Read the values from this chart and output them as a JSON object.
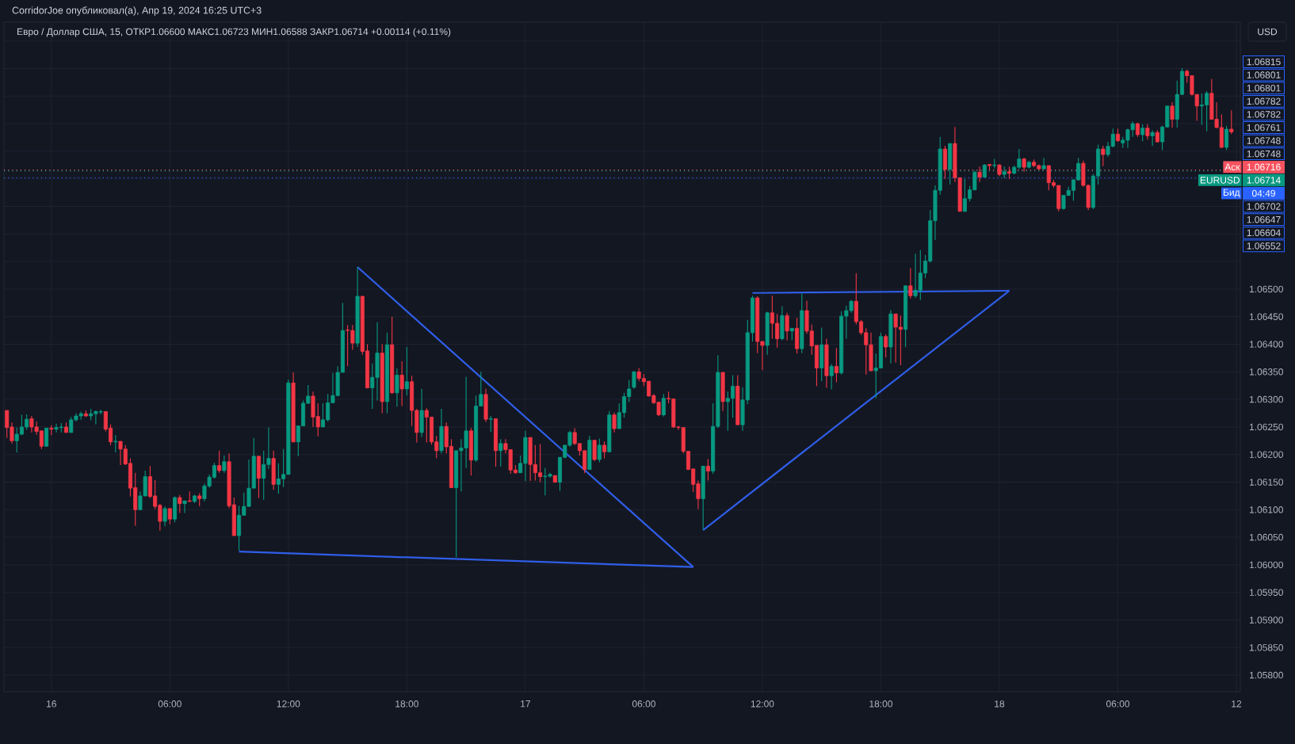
{
  "chart_data": {
    "type": "candlestick",
    "title": "CorridorJoe опубликовал(а), Апр 19, 2024 16:25 UTC+3",
    "subtitle": "Евро / Доллар США, 15, ОТКР1.06600 МАКС1.06723 МИН1.06588 ЗАКР1.06714 +0.00114 (+0.11%)",
    "ylabel": "USD",
    "x": [
      "2024-04-15T21:45",
      "2024-04-15T22:00",
      "2024-04-15T22:15",
      "2024-04-15T22:30",
      "2024-04-15T22:45",
      "2024-04-15T23:00",
      "2024-04-15T23:15",
      "2024-04-15T23:30",
      "2024-04-15T23:45",
      "2024-04-16T00:00",
      "2024-04-16T00:15",
      "2024-04-16T00:30",
      "2024-04-16T00:45",
      "2024-04-16T01:00",
      "2024-04-16T01:15",
      "2024-04-16T01:30",
      "2024-04-16T01:45",
      "2024-04-16T02:00",
      "2024-04-16T02:15",
      "2024-04-16T02:30",
      "2024-04-16T02:45",
      "2024-04-16T03:00",
      "2024-04-16T03:15",
      "2024-04-16T03:30",
      "2024-04-16T03:45",
      "2024-04-16T04:00",
      "2024-04-16T04:15",
      "2024-04-16T04:30",
      "2024-04-16T04:45",
      "2024-04-16T05:00",
      "2024-04-16T05:15",
      "2024-04-16T05:30",
      "2024-04-16T05:45",
      "2024-04-16T06:00",
      "2024-04-16T06:15",
      "2024-04-16T06:30",
      "2024-04-16T06:45",
      "2024-04-16T07:00",
      "2024-04-16T07:15",
      "2024-04-16T07:30",
      "2024-04-16T07:45",
      "2024-04-16T08:00",
      "2024-04-16T08:15",
      "2024-04-16T08:30",
      "2024-04-16T08:45",
      "2024-04-16T09:00",
      "2024-04-16T09:15",
      "2024-04-16T09:30",
      "2024-04-16T09:45",
      "2024-04-16T10:00",
      "2024-04-16T10:15",
      "2024-04-16T10:30",
      "2024-04-16T10:45",
      "2024-04-16T11:00",
      "2024-04-16T11:15",
      "2024-04-16T11:30",
      "2024-04-16T11:45",
      "2024-04-16T12:00",
      "2024-04-16T12:15",
      "2024-04-16T12:30",
      "2024-04-16T12:45",
      "2024-04-16T13:00",
      "2024-04-16T13:15",
      "2024-04-16T13:30",
      "2024-04-16T13:45",
      "2024-04-16T14:00",
      "2024-04-16T14:15",
      "2024-04-16T14:30",
      "2024-04-16T14:45",
      "2024-04-16T15:00",
      "2024-04-16T15:15",
      "2024-04-16T15:30",
      "2024-04-16T15:45",
      "2024-04-16T16:00",
      "2024-04-16T16:15",
      "2024-04-16T16:30",
      "2024-04-16T16:45",
      "2024-04-16T17:00",
      "2024-04-16T17:15",
      "2024-04-16T17:30",
      "2024-04-16T17:45",
      "2024-04-16T18:00",
      "2024-04-16T18:15",
      "2024-04-16T18:30",
      "2024-04-16T18:45",
      "2024-04-16T19:00",
      "2024-04-16T19:15",
      "2024-04-16T19:30",
      "2024-04-16T19:45",
      "2024-04-16T20:00",
      "2024-04-16T20:15",
      "2024-04-16T20:30",
      "2024-04-16T20:45",
      "2024-04-16T21:00",
      "2024-04-16T21:15",
      "2024-04-16T21:30",
      "2024-04-16T21:45",
      "2024-04-16T22:00",
      "2024-04-16T22:15",
      "2024-04-16T22:30",
      "2024-04-16T22:45",
      "2024-04-16T23:00",
      "2024-04-16T23:15",
      "2024-04-16T23:30",
      "2024-04-16T23:45",
      "2024-04-17T00:00",
      "2024-04-17T00:15",
      "2024-04-17T00:30",
      "2024-04-17T00:45",
      "2024-04-17T01:00",
      "2024-04-17T01:15",
      "2024-04-17T01:30",
      "2024-04-17T01:45",
      "2024-04-17T02:00",
      "2024-04-17T02:15",
      "2024-04-17T02:30",
      "2024-04-17T02:45",
      "2024-04-17T03:00",
      "2024-04-17T03:15",
      "2024-04-17T03:30",
      "2024-04-17T03:45",
      "2024-04-17T04:00",
      "2024-04-17T04:15",
      "2024-04-17T04:30",
      "2024-04-17T04:45",
      "2024-04-17T05:00",
      "2024-04-17T05:15",
      "2024-04-17T05:30",
      "2024-04-17T05:45",
      "2024-04-17T06:00",
      "2024-04-17T06:15",
      "2024-04-17T06:30",
      "2024-04-17T06:45",
      "2024-04-17T07:00",
      "2024-04-17T07:15",
      "2024-04-17T07:30",
      "2024-04-17T07:45",
      "2024-04-17T08:00",
      "2024-04-17T08:15",
      "2024-04-17T08:30",
      "2024-04-17T08:45",
      "2024-04-17T09:00",
      "2024-04-17T09:15",
      "2024-04-17T09:30",
      "2024-04-17T09:45",
      "2024-04-17T10:00",
      "2024-04-17T10:15",
      "2024-04-17T10:30",
      "2024-04-17T10:45",
      "2024-04-17T11:00",
      "2024-04-17T11:15",
      "2024-04-17T11:30",
      "2024-04-17T11:45",
      "2024-04-17T12:00",
      "2024-04-17T12:15",
      "2024-04-17T12:30",
      "2024-04-17T12:45",
      "2024-04-17T13:00",
      "2024-04-17T13:15",
      "2024-04-17T13:30",
      "2024-04-17T13:45",
      "2024-04-17T14:00",
      "2024-04-17T14:15",
      "2024-04-17T14:30",
      "2024-04-17T14:45",
      "2024-04-17T15:00",
      "2024-04-17T15:15",
      "2024-04-17T15:30",
      "2024-04-17T15:45",
      "2024-04-17T16:00",
      "2024-04-17T16:15",
      "2024-04-17T16:30",
      "2024-04-17T16:45",
      "2024-04-17T17:00",
      "2024-04-17T17:15",
      "2024-04-17T17:30",
      "2024-04-17T17:45",
      "2024-04-17T18:00",
      "2024-04-17T18:15",
      "2024-04-17T18:30",
      "2024-04-17T18:45",
      "2024-04-17T19:00",
      "2024-04-17T19:15",
      "2024-04-17T19:30",
      "2024-04-17T19:45",
      "2024-04-17T20:00",
      "2024-04-17T20:15",
      "2024-04-17T20:30",
      "2024-04-17T20:45",
      "2024-04-17T21:00",
      "2024-04-17T21:15",
      "2024-04-17T21:30",
      "2024-04-17T21:45",
      "2024-04-17T22:00",
      "2024-04-17T22:15",
      "2024-04-17T22:30",
      "2024-04-17T22:45",
      "2024-04-17T23:00",
      "2024-04-17T23:15",
      "2024-04-17T23:30",
      "2024-04-17T23:45",
      "2024-04-18T00:00",
      "2024-04-18T00:15",
      "2024-04-18T00:30",
      "2024-04-18T00:45",
      "2024-04-18T01:00",
      "2024-04-18T01:15",
      "2024-04-18T01:30",
      "2024-04-18T01:45",
      "2024-04-18T02:00",
      "2024-04-18T02:15",
      "2024-04-18T02:30",
      "2024-04-18T02:45",
      "2024-04-18T03:00",
      "2024-04-18T03:15",
      "2024-04-18T03:30",
      "2024-04-18T03:45",
      "2024-04-18T04:00",
      "2024-04-18T04:15",
      "2024-04-18T04:30",
      "2024-04-18T04:45",
      "2024-04-18T05:00",
      "2024-04-18T05:15",
      "2024-04-18T05:30",
      "2024-04-18T05:45",
      "2024-04-18T06:00",
      "2024-04-18T06:15",
      "2024-04-18T06:30",
      "2024-04-18T06:45",
      "2024-04-18T07:00",
      "2024-04-18T07:15",
      "2024-04-18T07:30",
      "2024-04-18T07:45",
      "2024-04-18T08:00",
      "2024-04-18T08:15",
      "2024-04-18T08:30",
      "2024-04-18T08:45",
      "2024-04-18T09:00",
      "2024-04-18T09:15",
      "2024-04-18T09:30",
      "2024-04-18T09:45",
      "2024-04-18T10:00",
      "2024-04-18T10:15",
      "2024-04-18T10:30",
      "2024-04-18T10:45",
      "2024-04-18T11:00",
      "2024-04-18T11:15",
      "2024-04-18T11:30",
      "2024-04-18T11:45"
    ],
    "ohlc": [
      [
        1.0628,
        1.0628,
        1.0623,
        1.06249
      ],
      [
        1.0625,
        1.06258,
        1.0622,
        1.06225
      ],
      [
        1.06225,
        1.06249,
        1.06204,
        1.06237
      ],
      [
        1.06237,
        1.06272,
        1.06235,
        1.0625
      ],
      [
        1.0625,
        1.06273,
        1.06245,
        1.06264
      ],
      [
        1.06265,
        1.0627,
        1.0624,
        1.0625
      ],
      [
        1.0625,
        1.0626,
        1.06236,
        1.06242
      ],
      [
        1.06243,
        1.06243,
        1.0621,
        1.06215
      ],
      [
        1.06215,
        1.06248,
        1.06215,
        1.06248
      ],
      [
        1.06248,
        1.06253,
        1.06235,
        1.06246
      ],
      [
        1.06246,
        1.06256,
        1.0624,
        1.06249
      ],
      [
        1.06249,
        1.06257,
        1.0624,
        1.0625
      ],
      [
        1.0625,
        1.06258,
        1.0624,
        1.0624
      ],
      [
        1.0624,
        1.06268,
        1.0624,
        1.06263
      ],
      [
        1.06263,
        1.06275,
        1.0626,
        1.0627
      ],
      [
        1.0627,
        1.06278,
        1.06263,
        1.06274
      ],
      [
        1.06274,
        1.0628,
        1.06268,
        1.0627
      ],
      [
        1.0627,
        1.06283,
        1.06262,
        1.06274
      ],
      [
        1.06274,
        1.0628,
        1.06255,
        1.06278
      ],
      [
        1.06277,
        1.06281,
        1.06273,
        1.06278
      ],
      [
        1.06278,
        1.06278,
        1.06242,
        1.06246
      ],
      [
        1.06248,
        1.06255,
        1.06217,
        1.06223
      ],
      [
        1.06223,
        1.06235,
        1.06204,
        1.06224
      ],
      [
        1.06224,
        1.06224,
        1.06181,
        1.0621
      ],
      [
        1.0621,
        1.06217,
        1.06181,
        1.06183
      ],
      [
        1.06184,
        1.06193,
        1.06124,
        1.06139
      ],
      [
        1.0614,
        1.06167,
        1.06071,
        1.061
      ],
      [
        1.061,
        1.06133,
        1.061,
        1.06125
      ],
      [
        1.06125,
        1.06171,
        1.06124,
        1.0616
      ],
      [
        1.0616,
        1.06179,
        1.06121,
        1.06124
      ],
      [
        1.06125,
        1.06154,
        1.06101,
        1.06106
      ],
      [
        1.06108,
        1.06111,
        1.06062,
        1.06079
      ],
      [
        1.06079,
        1.06106,
        1.0607,
        1.06102
      ],
      [
        1.06102,
        1.06103,
        1.06074,
        1.06083
      ],
      [
        1.06083,
        1.06124,
        1.06077,
        1.06122
      ],
      [
        1.06122,
        1.06127,
        1.06094,
        1.06111
      ],
      [
        1.06111,
        1.06116,
        1.06094,
        1.06116
      ],
      [
        1.06116,
        1.06133,
        1.06114,
        1.06115
      ],
      [
        1.06115,
        1.06127,
        1.06112,
        1.06125
      ],
      [
        1.06125,
        1.0613,
        1.06106,
        1.0612
      ],
      [
        1.0612,
        1.06147,
        1.06115,
        1.06143
      ],
      [
        1.06143,
        1.06164,
        1.0614,
        1.06159
      ],
      [
        1.06159,
        1.06185,
        1.06156,
        1.0618
      ],
      [
        1.0618,
        1.06207,
        1.06167,
        1.06171
      ],
      [
        1.06171,
        1.06198,
        1.06167,
        1.06187
      ],
      [
        1.06187,
        1.06202,
        1.06103,
        1.06107
      ],
      [
        1.06109,
        1.06122,
        1.06053,
        1.06053
      ],
      [
        1.06053,
        1.06107,
        1.06026,
        1.0609
      ],
      [
        1.0609,
        1.06131,
        1.0609,
        1.06106
      ],
      [
        1.06106,
        1.06191,
        1.06105,
        1.06139
      ],
      [
        1.06139,
        1.0623,
        1.06139,
        1.06197
      ],
      [
        1.06197,
        1.06197,
        1.06121,
        1.06157
      ],
      [
        1.06157,
        1.06207,
        1.06118,
        1.06182
      ],
      [
        1.06182,
        1.06249,
        1.06174,
        1.06193
      ],
      [
        1.06193,
        1.06207,
        1.06136,
        1.06146
      ],
      [
        1.06146,
        1.06184,
        1.06129,
        1.06156
      ],
      [
        1.06156,
        1.0621,
        1.06141,
        1.06164
      ],
      [
        1.06164,
        1.06336,
        1.06164,
        1.0633
      ],
      [
        1.0633,
        1.06349,
        1.06222,
        1.06223
      ],
      [
        1.06223,
        1.06252,
        1.06197,
        1.06252
      ],
      [
        1.06252,
        1.06298,
        1.06252,
        1.06293
      ],
      [
        1.06293,
        1.06326,
        1.06292,
        1.06306
      ],
      [
        1.06306,
        1.06314,
        1.0625,
        1.06268
      ],
      [
        1.06269,
        1.06293,
        1.06233,
        1.0625
      ],
      [
        1.0625,
        1.06293,
        1.0625,
        1.06263
      ],
      [
        1.06263,
        1.0631,
        1.0626,
        1.06294
      ],
      [
        1.06294,
        1.06348,
        1.06293,
        1.06307
      ],
      [
        1.06307,
        1.0636,
        1.06306,
        1.06349
      ],
      [
        1.06349,
        1.06475,
        1.06349,
        1.06425
      ],
      [
        1.06426,
        1.06435,
        1.0636,
        1.06425
      ],
      [
        1.06425,
        1.06435,
        1.0639,
        1.06402
      ],
      [
        1.06402,
        1.0654,
        1.06395,
        1.06487
      ],
      [
        1.06487,
        1.06487,
        1.06381,
        1.06387
      ],
      [
        1.06388,
        1.064,
        1.0632,
        1.06321
      ],
      [
        1.06321,
        1.06365,
        1.06283,
        1.0634
      ],
      [
        1.0634,
        1.0644,
        1.06298,
        1.06384
      ],
      [
        1.06384,
        1.064,
        1.06275,
        1.06296
      ],
      [
        1.06296,
        1.06421,
        1.06275,
        1.06399
      ],
      [
        1.06399,
        1.0645,
        1.0631,
        1.06312
      ],
      [
        1.06312,
        1.06356,
        1.06287,
        1.06344
      ],
      [
        1.06344,
        1.06369,
        1.06288,
        1.06319
      ],
      [
        1.06319,
        1.06395,
        1.06307,
        1.06332
      ],
      [
        1.06332,
        1.06343,
        1.06252,
        1.0628
      ],
      [
        1.0628,
        1.06283,
        1.06222,
        1.0624
      ],
      [
        1.0624,
        1.06319,
        1.06232,
        1.0628
      ],
      [
        1.0628,
        1.06284,
        1.06222,
        1.06268
      ],
      [
        1.06268,
        1.06268,
        1.06218,
        1.06223
      ],
      [
        1.06223,
        1.06234,
        1.06193,
        1.06207
      ],
      [
        1.06207,
        1.06283,
        1.06202,
        1.06251
      ],
      [
        1.06251,
        1.06258,
        1.06202,
        1.06214
      ],
      [
        1.06215,
        1.06228,
        1.0614,
        1.0614
      ],
      [
        1.0614,
        1.06207,
        1.06014,
        1.06207
      ],
      [
        1.06207,
        1.06228,
        1.06133,
        1.06212
      ],
      [
        1.06212,
        1.06341,
        1.06176,
        1.06243
      ],
      [
        1.06243,
        1.06248,
        1.06162,
        1.0619
      ],
      [
        1.0619,
        1.06307,
        1.06187,
        1.06288
      ],
      [
        1.06288,
        1.0635,
        1.06288,
        1.06309
      ],
      [
        1.06309,
        1.06319,
        1.06259,
        1.06264
      ],
      [
        1.06264,
        1.0627,
        1.06241,
        1.06265
      ],
      [
        1.06265,
        1.06265,
        1.06178,
        1.06207
      ],
      [
        1.06207,
        1.06228,
        1.06178,
        1.0622
      ],
      [
        1.0622,
        1.06228,
        1.06202,
        1.06209
      ],
      [
        1.06209,
        1.06209,
        1.06165,
        1.06172
      ],
      [
        1.06172,
        1.06181,
        1.06165,
        1.06167
      ],
      [
        1.06167,
        1.06198,
        1.06167,
        1.06184
      ],
      [
        1.06184,
        1.06243,
        1.06152,
        1.06231
      ],
      [
        1.06231,
        1.06231,
        1.06152,
        1.06182
      ],
      [
        1.06182,
        1.06217,
        1.06153,
        1.06167
      ],
      [
        1.06167,
        1.06219,
        1.0615,
        1.0616
      ],
      [
        1.0616,
        1.06176,
        1.06126,
        1.06161
      ],
      [
        1.06161,
        1.06167,
        1.06158,
        1.06164
      ],
      [
        1.06162,
        1.06162,
        1.06149,
        1.0615
      ],
      [
        1.0615,
        1.06195,
        1.06134,
        1.06195
      ],
      [
        1.06195,
        1.06217,
        1.06193,
        1.06217
      ],
      [
        1.06217,
        1.06243,
        1.06214,
        1.0624
      ],
      [
        1.0624,
        1.06248,
        1.06217,
        1.0622
      ],
      [
        1.0622,
        1.0622,
        1.06198,
        1.06207
      ],
      [
        1.06207,
        1.06207,
        1.06166,
        1.06173
      ],
      [
        1.06173,
        1.06234,
        1.06173,
        1.06226
      ],
      [
        1.06226,
        1.06226,
        1.06188,
        1.06191
      ],
      [
        1.06191,
        1.06229,
        1.06186,
        1.06217
      ],
      [
        1.06217,
        1.06224,
        1.06193,
        1.06205
      ],
      [
        1.06205,
        1.06279,
        1.06205,
        1.06272
      ],
      [
        1.06272,
        1.06276,
        1.0624,
        1.06247
      ],
      [
        1.06247,
        1.06293,
        1.06247,
        1.06276
      ],
      [
        1.06276,
        1.06312,
        1.06267,
        1.06305
      ],
      [
        1.06305,
        1.06335,
        1.06295,
        1.06319
      ],
      [
        1.06322,
        1.06352,
        1.06319,
        1.0635
      ],
      [
        1.0635,
        1.06357,
        1.06333,
        1.06338
      ],
      [
        1.06338,
        1.06346,
        1.06324,
        1.06332
      ],
      [
        1.06333,
        1.06333,
        1.06305,
        1.06306
      ],
      [
        1.06307,
        1.0631,
        1.06292,
        1.06294
      ],
      [
        1.06295,
        1.06295,
        1.0627,
        1.06272
      ],
      [
        1.06272,
        1.0631,
        1.06269,
        1.06302
      ],
      [
        1.06302,
        1.06314,
        1.06293,
        1.06301
      ],
      [
        1.06301,
        1.06301,
        1.06248,
        1.0625
      ],
      [
        1.0625,
        1.06252,
        1.06245,
        1.06249
      ],
      [
        1.06249,
        1.06249,
        1.06202,
        1.06206
      ],
      [
        1.06206,
        1.06206,
        1.06172,
        1.06173
      ],
      [
        1.06174,
        1.06174,
        1.06132,
        1.06146
      ],
      [
        1.06147,
        1.06153,
        1.06101,
        1.0612
      ],
      [
        1.0612,
        1.06179,
        1.06064,
        1.06179
      ],
      [
        1.06179,
        1.06192,
        1.06153,
        1.0617
      ],
      [
        1.0617,
        1.06293,
        1.06165,
        1.06251
      ],
      [
        1.06251,
        1.0638,
        1.06248,
        1.06349
      ],
      [
        1.06349,
        1.06349,
        1.06279,
        1.06296
      ],
      [
        1.06296,
        1.06314,
        1.06243,
        1.06302
      ],
      [
        1.06302,
        1.06344,
        1.06267,
        1.06324
      ],
      [
        1.06324,
        1.06344,
        1.06254,
        1.06254
      ],
      [
        1.06254,
        1.06322,
        1.06243,
        1.06299
      ],
      [
        1.06299,
        1.06444,
        1.06291,
        1.06421
      ],
      [
        1.06421,
        1.06488,
        1.06405,
        1.06484
      ],
      [
        1.06484,
        1.06487,
        1.06384,
        1.06405
      ],
      [
        1.06405,
        1.06406,
        1.06353,
        1.06398
      ],
      [
        1.06398,
        1.06459,
        1.06381,
        1.06457
      ],
      [
        1.06457,
        1.06488,
        1.0641,
        1.06438
      ],
      [
        1.06438,
        1.06455,
        1.06394,
        1.0641
      ],
      [
        1.0641,
        1.06469,
        1.06407,
        1.06452
      ],
      [
        1.06452,
        1.06457,
        1.06407,
        1.06424
      ],
      [
        1.06424,
        1.06429,
        1.06407,
        1.06429
      ],
      [
        1.06429,
        1.06448,
        1.06383,
        1.06392
      ],
      [
        1.06392,
        1.06492,
        1.06384,
        1.06461
      ],
      [
        1.06461,
        1.06479,
        1.06419,
        1.06424
      ],
      [
        1.06424,
        1.06436,
        1.06381,
        1.06397
      ],
      [
        1.06398,
        1.06398,
        1.06324,
        1.06357
      ],
      [
        1.06357,
        1.0643,
        1.06333,
        1.06399
      ],
      [
        1.06399,
        1.0641,
        1.06321,
        1.06343
      ],
      [
        1.06343,
        1.06364,
        1.06318,
        1.0636
      ],
      [
        1.0636,
        1.06393,
        1.06331,
        1.06348
      ],
      [
        1.06348,
        1.0646,
        1.06345,
        1.06451
      ],
      [
        1.06451,
        1.0647,
        1.0641,
        1.06461
      ],
      [
        1.06461,
        1.0648,
        1.06457,
        1.06478
      ],
      [
        1.06478,
        1.06529,
        1.06436,
        1.06441
      ],
      [
        1.06441,
        1.06444,
        1.06417,
        1.06421
      ],
      [
        1.06421,
        1.06429,
        1.06345,
        1.06399
      ],
      [
        1.06399,
        1.06421,
        1.06351,
        1.06352
      ],
      [
        1.06352,
        1.06383,
        1.06302,
        1.06357
      ],
      [
        1.06357,
        1.06421,
        1.06357,
        1.06414
      ],
      [
        1.06414,
        1.06418,
        1.06376,
        1.06395
      ],
      [
        1.06395,
        1.06462,
        1.06365,
        1.06455
      ],
      [
        1.06455,
        1.06455,
        1.06367,
        1.06431
      ],
      [
        1.06431,
        1.06452,
        1.06362,
        1.06427
      ],
      [
        1.06427,
        1.06506,
        1.06395,
        1.06506
      ],
      [
        1.06506,
        1.06538,
        1.06483,
        1.06488
      ],
      [
        1.06488,
        1.06564,
        1.06484,
        1.06498
      ],
      [
        1.06498,
        1.06571,
        1.0648,
        1.06529
      ],
      [
        1.06529,
        1.06562,
        1.0652,
        1.06551
      ],
      [
        1.06551,
        1.06643,
        1.06548,
        1.06624
      ],
      [
        1.06624,
        1.06688,
        1.06589,
        1.06679
      ],
      [
        1.06679,
        1.06776,
        1.06671,
        1.06754
      ],
      [
        1.06754,
        1.0676,
        1.067,
        1.06717
      ],
      [
        1.06717,
        1.06764,
        1.0669,
        1.06764
      ],
      [
        1.06764,
        1.06794,
        1.06694,
        1.06702
      ],
      [
        1.06702,
        1.06702,
        1.06641,
        1.06641
      ],
      [
        1.06641,
        1.067,
        1.0664,
        1.06664
      ],
      [
        1.06664,
        1.06687,
        1.06659,
        1.0668
      ],
      [
        1.0668,
        1.06715,
        1.06679,
        1.06712
      ],
      [
        1.06712,
        1.06722,
        1.06694,
        1.06703
      ],
      [
        1.06703,
        1.06727,
        1.06702,
        1.06725
      ],
      [
        1.06726,
        1.06727,
        1.06717,
        1.06724
      ],
      [
        1.06724,
        1.06736,
        1.06719,
        1.06725
      ],
      [
        1.06725,
        1.06727,
        1.06705,
        1.06708
      ],
      [
        1.06708,
        1.06722,
        1.06701,
        1.06713
      ],
      [
        1.06713,
        1.06722,
        1.067,
        1.0671
      ],
      [
        1.0671,
        1.06724,
        1.06708,
        1.06721
      ],
      [
        1.06721,
        1.06754,
        1.06718,
        1.06736
      ],
      [
        1.06736,
        1.06738,
        1.06713,
        1.06721
      ],
      [
        1.06721,
        1.06733,
        1.06719,
        1.0673
      ],
      [
        1.0673,
        1.06735,
        1.06721,
        1.06724
      ],
      [
        1.06724,
        1.06726,
        1.06717,
        1.06718
      ],
      [
        1.06718,
        1.06738,
        1.06717,
        1.06724
      ],
      [
        1.06724,
        1.06724,
        1.06679,
        1.06693
      ],
      [
        1.06693,
        1.06698,
        1.06684,
        1.06688
      ],
      [
        1.06688,
        1.06688,
        1.06641,
        1.06646
      ],
      [
        1.06646,
        1.0667,
        1.06644,
        1.0667
      ],
      [
        1.0667,
        1.06686,
        1.06669,
        1.06679
      ],
      [
        1.06679,
        1.067,
        1.0666,
        1.06698
      ],
      [
        1.06698,
        1.06738,
        1.06697,
        1.06728
      ],
      [
        1.06728,
        1.06733,
        1.06686,
        1.06688
      ],
      [
        1.06688,
        1.0669,
        1.06643,
        1.06648
      ],
      [
        1.06648,
        1.06709,
        1.06645,
        1.06705
      ],
      [
        1.06705,
        1.06762,
        1.0669,
        1.06754
      ],
      [
        1.06754,
        1.0676,
        1.06723,
        1.06744
      ],
      [
        1.06744,
        1.06767,
        1.0674,
        1.06759
      ],
      [
        1.06759,
        1.06791,
        1.06757,
        1.06781
      ],
      [
        1.06781,
        1.06791,
        1.06767,
        1.06769
      ],
      [
        1.06765,
        1.06776,
        1.06756,
        1.0677
      ],
      [
        1.0677,
        1.06791,
        1.06756,
        1.06789
      ],
      [
        1.06789,
        1.06804,
        1.06776,
        1.068
      ],
      [
        1.068,
        1.06802,
        1.06776,
        1.0678
      ],
      [
        1.0678,
        1.06799,
        1.06768,
        1.06792
      ],
      [
        1.06792,
        1.06799,
        1.06771,
        1.06778
      ],
      [
        1.06778,
        1.06788,
        1.0676,
        1.06784
      ],
      [
        1.06784,
        1.06788,
        1.06766,
        1.06767
      ],
      [
        1.06767,
        1.06796,
        1.06752,
        1.06794
      ],
      [
        1.06794,
        1.06832,
        1.06793,
        1.06832
      ],
      [
        1.06832,
        1.06839,
        1.06793,
        1.06808
      ],
      [
        1.06808,
        1.06878,
        1.06793,
        1.06853
      ],
      [
        1.06853,
        1.06901,
        1.06852,
        1.06895
      ],
      [
        1.06895,
        1.06898,
        1.06874,
        1.06887
      ],
      [
        1.06887,
        1.06887,
        1.06851,
        1.06853
      ],
      [
        1.06853,
        1.06853,
        1.06805,
        1.06832
      ],
      [
        1.06832,
        1.06855,
        1.06798,
        1.06834
      ],
      [
        1.06834,
        1.06859,
        1.06786,
        1.06855
      ],
      [
        1.06855,
        1.06881,
        1.06807,
        1.06808
      ],
      [
        1.06808,
        1.06839,
        1.06792,
        1.06793
      ],
      [
        1.06793,
        1.06817,
        1.06756,
        1.06757
      ],
      [
        1.06757,
        1.06796,
        1.06752,
        1.0679
      ],
      [
        1.0679,
        1.06824,
        1.06781,
        1.06785
      ]
    ],
    "series": [
      {
        "type": "line",
        "color": "#2f5ee8",
        "x": [
          "2024-04-16T15:30",
          "2024-04-17T08:30"
        ],
        "values": [
          1.0654,
          1.05996
        ]
      },
      {
        "type": "line",
        "color": "#2f5ee8",
        "x": [
          "2024-04-16T09:30",
          "2024-04-17T08:30"
        ],
        "values": [
          1.06024,
          1.05996
        ]
      },
      {
        "type": "line",
        "color": "#2f5ee8",
        "x": [
          "2024-04-17T09:00",
          "2024-04-18T00:30"
        ],
        "values": [
          1.06063,
          1.06497
        ]
      },
      {
        "type": "line",
        "color": "#2f5ee8",
        "x": [
          "2024-04-17T11:30",
          "2024-04-18T00:30"
        ],
        "values": [
          1.06493,
          1.06497
        ]
      }
    ],
    "xlim": [
      "2024-04-15T21:36",
      "2024-04-18T12:12"
    ],
    "xticks": [
      {
        "value": "2024-04-16T00:00",
        "label": "16"
      },
      {
        "value": "2024-04-16T06:00",
        "label": "06:00"
      },
      {
        "value": "2024-04-16T12:00",
        "label": "12:00"
      },
      {
        "value": "2024-04-16T18:00",
        "label": "18:00"
      },
      {
        "value": "2024-04-17T00:00",
        "label": "17"
      },
      {
        "value": "2024-04-17T06:00",
        "label": "06:00"
      },
      {
        "value": "2024-04-17T12:00",
        "label": "12:00"
      },
      {
        "value": "2024-04-17T18:00",
        "label": "18:00"
      },
      {
        "value": "2024-04-18T00:00",
        "label": "18"
      },
      {
        "value": "2024-04-18T06:00",
        "label": "06:00"
      },
      {
        "value": "2024-04-18T12:00",
        "label": "12"
      }
    ],
    "legend": "right",
    "ylim": [
      1.0577,
      1.06984
    ],
    "yticks": [
      {
        "value": 1.058,
        "label": "1.05800"
      },
      {
        "value": 1.0585,
        "label": "1.05850"
      },
      {
        "value": 1.059,
        "label": "1.05900"
      },
      {
        "value": 1.0595,
        "label": "1.05950"
      },
      {
        "value": 1.06,
        "label": "1.06000"
      },
      {
        "value": 1.0605,
        "label": "1.06050"
      },
      {
        "value": 1.061,
        "label": "1.06100"
      },
      {
        "value": 1.0615,
        "label": "1.06150"
      },
      {
        "value": 1.062,
        "label": "1.06200"
      },
      {
        "value": 1.0625,
        "label": "1.06250"
      },
      {
        "value": 1.063,
        "label": "1.06300"
      },
      {
        "value": 1.0635,
        "label": "1.06350"
      },
      {
        "value": 1.064,
        "label": "1.06400"
      },
      {
        "value": 1.0645,
        "label": "1.06450"
      },
      {
        "value": 1.065,
        "label": "1.06500"
      },
      {
        "value": 1.0655,
        "label": null
      },
      {
        "value": 1.066,
        "label": null
      },
      {
        "value": 1.0665,
        "label": null
      },
      {
        "value": 1.067,
        "label": null
      },
      {
        "value": 1.0675,
        "label": null
      },
      {
        "value": 1.068,
        "label": null
      },
      {
        "value": 1.0685,
        "label": null
      },
      {
        "value": 1.069,
        "label": null
      },
      {
        "value": 1.0695,
        "label": null
      }
    ],
    "grid": true,
    "ref_lines": [
      {
        "axis": "y",
        "value": 1.06716,
        "label": "Аск",
        "color": "#f7525f",
        "line_style": "dotted"
      },
      {
        "axis": "y",
        "value": 1.06714,
        "label": "EURUSD",
        "color": "#089981",
        "line_style": "dotted"
      },
      {
        "axis": "y",
        "value": 1.06702,
        "label": "Бид",
        "color": "#2962ff",
        "line_style": "dotted"
      }
    ],
    "annotations": [
      "1.06815",
      "1.06801",
      "1.06801",
      "1.06782",
      "1.06782",
      "1.06761",
      "1.06748",
      "1.06748",
      "1.06716",
      "1.06714",
      "04:49",
      "1.06702",
      "1.06647",
      "1.06604",
      "1.06552"
    ]
  }
}
